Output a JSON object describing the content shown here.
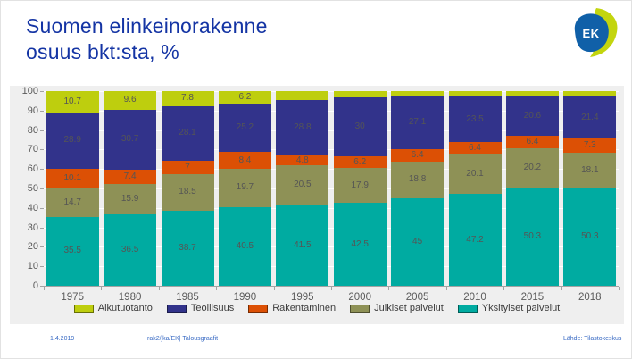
{
  "page": {
    "title_line1": "Suomen elinkeinorakenne",
    "title_line2": "osuus bkt:sta, %",
    "logo_text": "EK"
  },
  "footer": {
    "date": "1.4.2019",
    "doc_ref": "rak2/jka/EK| Talousgraafit",
    "source": "Lähde: Tilastokeskus"
  },
  "colors": {
    "title_blue": "#1434a4",
    "panel_background": "#efefef",
    "gridline": "#ffffff",
    "axis_gray": "#a3a3a3",
    "label_gray": "#5a5a5a",
    "logo_blue": "#1060a8",
    "logo_green": "#c3d50e"
  },
  "chart_data": {
    "type": "bar",
    "stacked": true,
    "title": "Suomen elinkeinorakenne osuus bkt:sta, %",
    "xlabel": "",
    "ylabel": "",
    "ylim": [
      0,
      100
    ],
    "grid": true,
    "legend_position": "bottom",
    "categories": [
      "1975",
      "1980",
      "1985",
      "1990",
      "1995",
      "2000",
      "2005",
      "2010",
      "2015",
      "2018"
    ],
    "y_axis": {
      "min": 0,
      "max": 100,
      "step": 10
    },
    "series": [
      {
        "name": "Yksityiset palvelut",
        "color": "#00aba1",
        "values": [
          35.5,
          36.5,
          38.7,
          40.5,
          41.5,
          42.5,
          45,
          47.2,
          50.3,
          50.3
        ],
        "labels": [
          "35.5",
          "36.5",
          "38.7",
          "40.5",
          "41.5",
          "42.5",
          "45",
          "47.2",
          "50.3",
          "50.3"
        ]
      },
      {
        "name": "Julkiset palvelut",
        "color": "#8e9156",
        "values": [
          14.7,
          15.9,
          18.5,
          19.7,
          20.5,
          17.9,
          18.8,
          20.1,
          20.2,
          18.1
        ],
        "labels": [
          "14.7",
          "15.9",
          "18.5",
          "19.7",
          "20.5",
          "17.9",
          "18.8",
          "20.1",
          "20.2",
          "18.1"
        ]
      },
      {
        "name": "Rakentaminen",
        "color": "#dc5005",
        "values": [
          10.1,
          7.4,
          7,
          8.4,
          4.8,
          6.2,
          6.4,
          6.4,
          6.4,
          7.3
        ],
        "labels": [
          "10.1",
          "7.4",
          "7",
          "8.4",
          "4.8",
          "6.2",
          "6.4",
          "6.4",
          "6.4",
          "7.3"
        ]
      },
      {
        "name": "Teollisuus",
        "color": "#32338b",
        "values": [
          28.9,
          30.7,
          28.1,
          25.2,
          28.8,
          30,
          27.1,
          23.5,
          20.6,
          21.4
        ],
        "labels": [
          "28.9",
          "30.7",
          "28.1",
          "25.2",
          "28.8",
          "30",
          "27.1",
          "23.5",
          "20.6",
          "21.4"
        ]
      },
      {
        "name": "Alkutuotanto",
        "color": "#bece0e",
        "values": [
          10.7,
          9.6,
          7.8,
          6.2,
          4.4,
          3.4,
          2.7,
          2.8,
          2.5,
          2.9
        ],
        "labels": [
          "10.7",
          "9.6",
          "7.8",
          "6.2",
          "",
          "",
          "",
          "",
          "",
          ""
        ]
      }
    ],
    "legend": [
      "Alkutuotanto",
      "Teollisuus",
      "Rakentaminen",
      "Julkiset palvelut",
      "Yksityiset palvelut"
    ],
    "legend_colors": [
      "#bece0e",
      "#32338b",
      "#dc5005",
      "#8e9156",
      "#00aba1"
    ]
  }
}
